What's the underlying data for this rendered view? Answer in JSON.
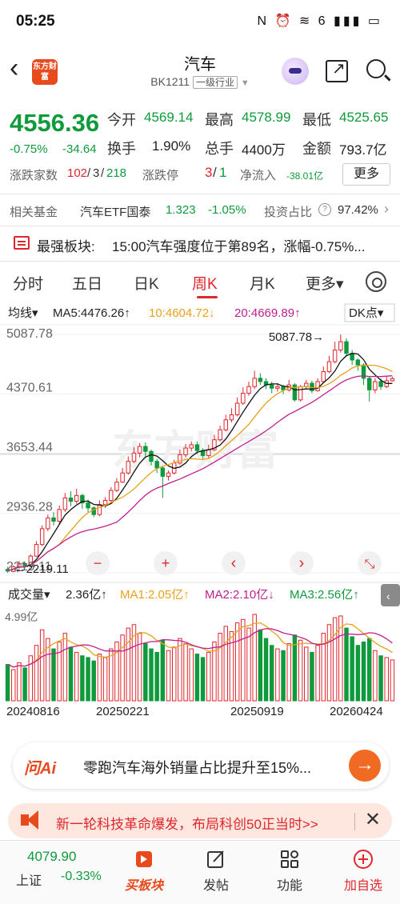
{
  "status_bar": {
    "time": "05:25",
    "icons": "N ⏰ ≋ 6 ▮▮▮ ▭"
  },
  "header": {
    "back": "‹",
    "logo": "东方财富",
    "title": "汽车",
    "code": "BK1211",
    "category": "一级行业"
  },
  "quote": {
    "price": "4556.36",
    "change_pct": "-0.75%",
    "change_abs": "-34.64",
    "open_label": "今开",
    "open": "4569.14",
    "high_label": "最高",
    "high": "4578.99",
    "low_label": "最低",
    "low": "4525.65",
    "turnover_label": "换手",
    "turnover": "1.90%",
    "volume_label": "总手",
    "volume": "4400万",
    "amount_label": "金额",
    "amount": "793.7亿"
  },
  "stats": {
    "updown_label": "涨跌家数",
    "up": "102",
    "flat": "3",
    "down": "218",
    "limit_label": "涨跌停",
    "limit_up": "3",
    "limit_down": "1",
    "netflow_label": "净流入",
    "netflow": "-38.01亿",
    "more": "更多"
  },
  "fund": {
    "label": "相关基金",
    "name": "汽车ETF国泰",
    "price": "1.323",
    "pct": "-1.05%",
    "ratio_label": "投资占比",
    "ratio": "97.42%",
    "more": "›"
  },
  "strongest": {
    "label": "最强板块:",
    "text": "15:00汽车强度位于第89名，涨幅-0.75%..."
  },
  "tabs": [
    "分时",
    "五日",
    "日K",
    "周K",
    "月K",
    "更多▾"
  ],
  "active_tab_index": 3,
  "kline_header": {
    "mode": "均线▾",
    "ma5": "MA5:4476.26↑",
    "ma10": "10:4604.72↓",
    "ma20": "20:4669.89↑",
    "dk": "DK点▾",
    "watermark": "东方财富"
  },
  "controls": {
    "minus": "−",
    "plus": "+",
    "left": "‹",
    "right": "›",
    "expand": "⤡"
  },
  "volume_header": {
    "label": "成交量▾",
    "vol": "2.36亿↑",
    "ma1": "MA1:2.05亿↑",
    "ma2": "MA2:2.10亿↓",
    "ma3": "MA3:2.56亿↑",
    "max": "4.99亿"
  },
  "chart_data": {
    "type": "candlestick",
    "y_ticks": [
      "5087.78",
      "4370.61",
      "3653.44",
      "2936.28",
      "2219.11"
    ],
    "ylim": [
      2219.11,
      5087.78
    ],
    "high_marker": "5087.78",
    "low_marker": "2219.11",
    "x_labels": [
      "20240816",
      "20250221",
      "20250919",
      "20260424"
    ],
    "series": [
      {
        "name": "MA5",
        "color": "#111111"
      },
      {
        "name": "MA10",
        "color": "#e8a21a"
      },
      {
        "name": "MA20",
        "color": "#c0208f"
      }
    ],
    "candles": [
      [
        2260,
        2240,
        2290,
        2219
      ],
      [
        2235,
        2290,
        2310,
        2225
      ],
      [
        2290,
        2330,
        2360,
        2270
      ],
      [
        2330,
        2300,
        2350,
        2280
      ],
      [
        2300,
        2420,
        2440,
        2290
      ],
      [
        2420,
        2560,
        2600,
        2410
      ],
      [
        2560,
        2750,
        2790,
        2540
      ],
      [
        2750,
        2880,
        2920,
        2720
      ],
      [
        2880,
        2840,
        2950,
        2790
      ],
      [
        2840,
        2980,
        3030,
        2810
      ],
      [
        2980,
        3120,
        3180,
        2950
      ],
      [
        3120,
        3080,
        3200,
        3020
      ],
      [
        3080,
        3150,
        3230,
        3050
      ],
      [
        3150,
        3060,
        3170,
        2990
      ],
      [
        3060,
        3000,
        3100,
        2950
      ],
      [
        3000,
        2920,
        3020,
        2890
      ],
      [
        2920,
        3040,
        3090,
        2900
      ],
      [
        3040,
        3090,
        3130,
        3000
      ],
      [
        3090,
        3210,
        3250,
        3060
      ],
      [
        3210,
        3310,
        3360,
        3190
      ],
      [
        3310,
        3420,
        3480,
        3300
      ],
      [
        3420,
        3560,
        3620,
        3400
      ],
      [
        3560,
        3660,
        3730,
        3540
      ],
      [
        3660,
        3740,
        3780,
        3610
      ],
      [
        3740,
        3680,
        3790,
        3620
      ],
      [
        3680,
        3560,
        3700,
        3510
      ],
      [
        3560,
        3480,
        3590,
        3420
      ],
      [
        3480,
        3380,
        3500,
        3120
      ],
      [
        3380,
        3420,
        3450,
        3330
      ],
      [
        3420,
        3540,
        3580,
        3400
      ],
      [
        3540,
        3640,
        3700,
        3520
      ],
      [
        3640,
        3720,
        3770,
        3610
      ],
      [
        3720,
        3760,
        3800,
        3680
      ],
      [
        3760,
        3690,
        3800,
        3650
      ],
      [
        3690,
        3630,
        3720,
        3590
      ],
      [
        3630,
        3700,
        3760,
        3600
      ],
      [
        3700,
        3820,
        3880,
        3680
      ],
      [
        3820,
        3940,
        3990,
        3800
      ],
      [
        3940,
        4060,
        4120,
        3920
      ],
      [
        4060,
        4120,
        4200,
        4030
      ],
      [
        4120,
        4260,
        4330,
        4100
      ],
      [
        4260,
        4380,
        4450,
        4240
      ],
      [
        4380,
        4460,
        4520,
        4350
      ],
      [
        4460,
        4560,
        4650,
        4430
      ],
      [
        4560,
        4520,
        4620,
        4480
      ],
      [
        4520,
        4480,
        4560,
        4430
      ],
      [
        4480,
        4440,
        4520,
        4380
      ],
      [
        4440,
        4460,
        4500,
        4400
      ],
      [
        4460,
        4420,
        4480,
        4370
      ],
      [
        4420,
        4480,
        4540,
        4400
      ],
      [
        4480,
        4300,
        4500,
        4280
      ],
      [
        4300,
        4460,
        4480,
        4280
      ],
      [
        4460,
        4500,
        4540,
        4430
      ],
      [
        4500,
        4410,
        4530,
        4380
      ],
      [
        4410,
        4520,
        4560,
        4400
      ],
      [
        4520,
        4640,
        4700,
        4500
      ],
      [
        4640,
        4760,
        4830,
        4620
      ],
      [
        4760,
        4900,
        5000,
        4740
      ],
      [
        4900,
        5000,
        5087,
        4870
      ],
      [
        5000,
        4860,
        5040,
        4820
      ],
      [
        4860,
        4780,
        4900,
        4720
      ],
      [
        4780,
        4720,
        4800,
        4650
      ],
      [
        4720,
        4560,
        4740,
        4480
      ],
      [
        4560,
        4420,
        4580,
        4280
      ],
      [
        4420,
        4520,
        4560,
        4380
      ],
      [
        4520,
        4460,
        4560,
        4420
      ],
      [
        4460,
        4530,
        4580,
        4440
      ],
      [
        4530,
        4556,
        4579,
        4520
      ]
    ],
    "volumes": [
      2.1,
      1.8,
      2.2,
      1.9,
      2.6,
      3.2,
      4.1,
      3.6,
      3.0,
      3.4,
      3.9,
      3.1,
      2.8,
      2.6,
      2.5,
      2.3,
      2.7,
      2.5,
      3.0,
      3.4,
      3.8,
      4.2,
      4.4,
      3.9,
      3.3,
      3.0,
      2.8,
      3.5,
      2.9,
      3.1,
      3.6,
      3.3,
      3.0,
      2.7,
      2.5,
      2.8,
      3.4,
      3.9,
      4.3,
      4.0,
      4.5,
      4.7,
      4.2,
      4.99,
      4.1,
      3.6,
      3.2,
      3.0,
      2.9,
      3.3,
      3.8,
      3.5,
      3.1,
      2.8,
      3.2,
      3.9,
      4.4,
      4.8,
      4.9,
      4.2,
      3.7,
      3.2,
      3.4,
      3.6,
      2.9,
      2.6,
      2.5,
      2.36
    ]
  },
  "ai_news": {
    "logo": "问Ai",
    "text": "零跑汽车海外销量占比提升至15%...",
    "go": "→"
  },
  "promo": {
    "text": "新一轮科技革命爆发，布局科创50正当时>>",
    "close": "✕"
  },
  "bottom_nav": {
    "index_value": "4079.90",
    "index_name": "上证",
    "index_pct": "-0.33%",
    "items": [
      "买板块",
      "发帖",
      "功能",
      "加自选"
    ]
  }
}
